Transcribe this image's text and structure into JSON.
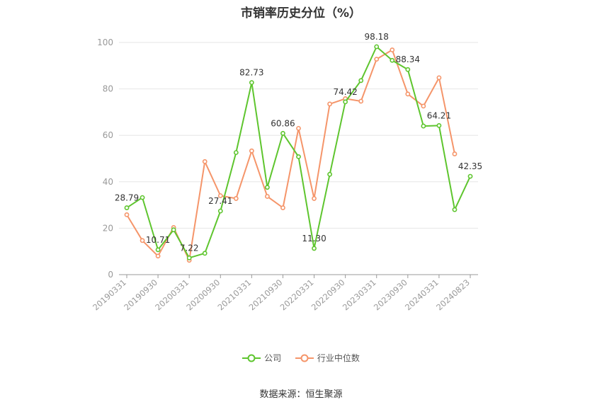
{
  "colors": {
    "company": "#5ec52e",
    "industry": "#f5956a",
    "grid": "#e6e6e6",
    "axis": "#999999"
  },
  "chart_data": {
    "type": "line",
    "title": "市销率历史分位（%）",
    "xlabel": "",
    "ylabel": "",
    "ylim": [
      0,
      100
    ],
    "yticks": [
      0,
      20,
      40,
      60,
      80,
      100
    ],
    "grid": true,
    "legend_position": "bottom",
    "x": [
      "20190331",
      "20190630",
      "20190930",
      "20191231",
      "20200331",
      "20200630",
      "20200930",
      "20201231",
      "20210331",
      "20210630",
      "20210930",
      "20211231",
      "20220331",
      "20220630",
      "20220930",
      "20221231",
      "20230331",
      "20230630",
      "20230930",
      "20231231",
      "20240331",
      "20240630",
      "20240823"
    ],
    "xtick_labels": [
      "20190331",
      "20190930",
      "20200331",
      "20200930",
      "20210331",
      "20210930",
      "20220331",
      "20220930",
      "20230331",
      "20230930",
      "20240331",
      "20240823"
    ],
    "xtick_indices": [
      0,
      2,
      4,
      6,
      8,
      10,
      12,
      14,
      16,
      18,
      20,
      22
    ],
    "series": [
      {
        "name": "公司",
        "color": "#5ec52e",
        "values": [
          28.79,
          33.2,
          10.71,
          19.3,
          7.22,
          9.2,
          27.41,
          52.6,
          82.73,
          37.6,
          60.86,
          50.8,
          11.3,
          43.2,
          74.42,
          83.6,
          98.18,
          92.3,
          88.34,
          64.0,
          64.21,
          28.0,
          42.35
        ],
        "labels": [
          "28.79",
          "",
          "10.71",
          "",
          "7.22",
          "",
          "27.41",
          "",
          "82.73",
          "",
          "60.86",
          "",
          "11.30",
          "",
          "74.42",
          "",
          "98.18",
          "",
          "88.34",
          "",
          "64.21",
          "",
          "42.35"
        ]
      },
      {
        "name": "行业中位数",
        "color": "#f5956a",
        "values": [
          25.8,
          14.7,
          8.0,
          20.3,
          6.2,
          48.7,
          34.0,
          32.8,
          53.3,
          33.7,
          28.8,
          63.0,
          32.8,
          73.5,
          75.8,
          74.7,
          92.8,
          96.8,
          77.8,
          72.6,
          84.8,
          52.0,
          null
        ],
        "labels": []
      }
    ]
  },
  "source": "数据来源：恒生聚源"
}
